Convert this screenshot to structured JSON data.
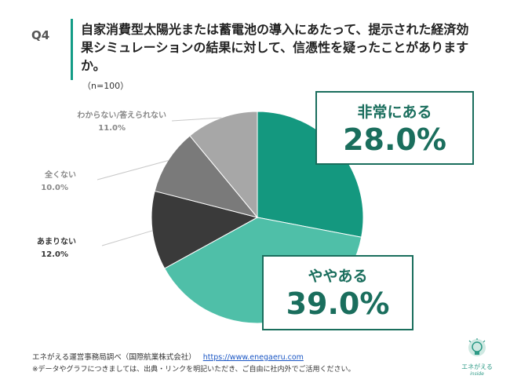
{
  "question": {
    "number": "Q4",
    "text": "自家消費型太陽光または蓄電池の導入にあたって、提示された経済効果シミュレーションの結果に対して、信憑性を疑ったことがありますか。",
    "n": "（n=100）"
  },
  "chart_data": {
    "type": "pie",
    "start_angle_deg": 0,
    "direction": "clockwise",
    "slices": [
      {
        "label": "非常にある",
        "value": 28.0,
        "display": "28.0%",
        "color": "#14987f"
      },
      {
        "label": "ややある",
        "value": 39.0,
        "display": "39.0%",
        "color": "#4fbfa8"
      },
      {
        "label": "あまりない",
        "value": 12.0,
        "display": "12.0%",
        "color": "#3a3a3a"
      },
      {
        "label": "全くない",
        "value": 10.0,
        "display": "10.0%",
        "color": "#7a7a7a"
      },
      {
        "label": "わからない/答えられない",
        "value": 11.0,
        "display": "11.0%",
        "color": "#a7a7a7"
      }
    ]
  },
  "footer": {
    "source": "エネがえる運営事務局調べ（国際航業株式会社）",
    "url": "https://www.enegaeru.com",
    "note": "※データやグラフにつきましては、出典・リンクを明記いただき、ご自由に社内外でご活用ください。"
  },
  "logo": {
    "text": "エネがえる",
    "sub": "inside"
  }
}
